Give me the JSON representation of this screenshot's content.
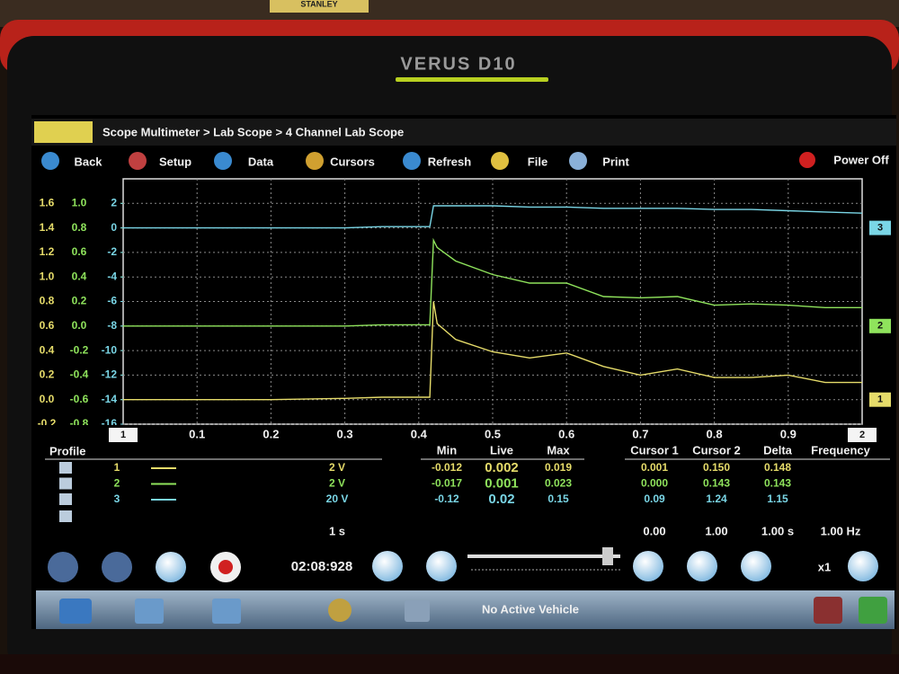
{
  "background_label": "STANLEY",
  "brand": "VERUS D10",
  "breadcrumb": "Scope Multimeter > Lab Scope > 4 Channel Lab Scope",
  "toolbar": [
    "Back",
    "Setup",
    "Data",
    "Cursors",
    "Refresh",
    "File",
    "Print"
  ],
  "power": "Power Off",
  "chart_data": {
    "type": "line",
    "x": [
      0,
      0.1,
      0.2,
      0.3,
      0.35,
      0.4,
      0.415,
      0.42,
      0.425,
      0.45,
      0.5,
      0.55,
      0.6,
      0.65,
      0.7,
      0.75,
      0.8,
      0.85,
      0.9,
      0.95,
      1.0
    ],
    "series": [
      {
        "name": "1",
        "color": "#e6dc6a",
        "axis": "y",
        "values": [
          0,
          0,
          0,
          0.01,
          0.02,
          0.02,
          0.02,
          0.8,
          0.62,
          0.49,
          0.39,
          0.34,
          0.38,
          0.27,
          0.2,
          0.25,
          0.18,
          0.18,
          0.2,
          0.14,
          0.14
        ]
      },
      {
        "name": "2",
        "color": "#8fe35c",
        "axis": "y2",
        "values": [
          0,
          0,
          0,
          0,
          0.01,
          0.01,
          0.01,
          0.7,
          0.64,
          0.53,
          0.42,
          0.35,
          0.35,
          0.24,
          0.23,
          0.24,
          0.17,
          0.18,
          0.17,
          0.15,
          0.15
        ]
      },
      {
        "name": "3",
        "color": "#7ad6e6",
        "axis": "y3",
        "values": [
          0,
          0,
          0,
          0,
          0.1,
          0.1,
          0.1,
          1.8,
          1.8,
          1.8,
          1.8,
          1.7,
          1.7,
          1.6,
          1.6,
          1.6,
          1.5,
          1.5,
          1.4,
          1.3,
          1.2
        ]
      }
    ],
    "xlim": [
      0,
      1.0
    ],
    "xticks": [
      0.1,
      0.2,
      0.3,
      0.4,
      0.5,
      0.6,
      0.7,
      0.8,
      0.9
    ],
    "ylim": [
      -0.2,
      1.8
    ],
    "yticks": [
      -0.2,
      {
        "value": 0,
        "label": "0.0"
      },
      0.2,
      0.4,
      0.6,
      0.8,
      {
        "value": 1,
        "label": "1.0"
      },
      1.2,
      1.4,
      1.6
    ],
    "y2lim": [
      -0.8,
      1.2
    ],
    "y2ticks": [
      -0.8,
      -0.6,
      -0.4,
      -0.2,
      {
        "value": 0,
        "label": "0.0"
      },
      0.2,
      0.4,
      0.6,
      0.8,
      {
        "value": 1,
        "label": "1.0"
      }
    ],
    "y3lim": [
      -16,
      4
    ],
    "y3ticks": [
      -16,
      -14,
      -12,
      -10,
      -8,
      -6,
      -4,
      -2,
      0,
      2
    ],
    "grid": true,
    "cursor_markers": [
      "1",
      "2"
    ]
  },
  "profile": {
    "title": "Profile",
    "headers": [
      "Min",
      "Live",
      "Max",
      "Cursor 1",
      "Cursor 2",
      "Delta",
      "Frequency"
    ],
    "rows": [
      {
        "channel": "1",
        "scale": "2 V",
        "values": [
          "-0.012",
          "0.002",
          "0.019",
          "0.001",
          "0.150",
          "0.148"
        ]
      },
      {
        "channel": "2",
        "scale": "2 V",
        "values": [
          "-0.017",
          "0.001",
          "0.023",
          "0.000",
          "0.143",
          "0.143"
        ]
      },
      {
        "channel": "3",
        "scale": "20 V",
        "values": [
          "-0.12",
          "0.02",
          "0.15",
          "0.09",
          "1.24",
          "1.15"
        ]
      }
    ],
    "footer": [
      "1 s",
      "0.00",
      "1.00",
      "1.00 s",
      "1.00 Hz"
    ]
  },
  "playback": {
    "time": "02:08:928",
    "zoom": "x1"
  },
  "taskbar": {
    "status": "No Active Vehicle"
  }
}
